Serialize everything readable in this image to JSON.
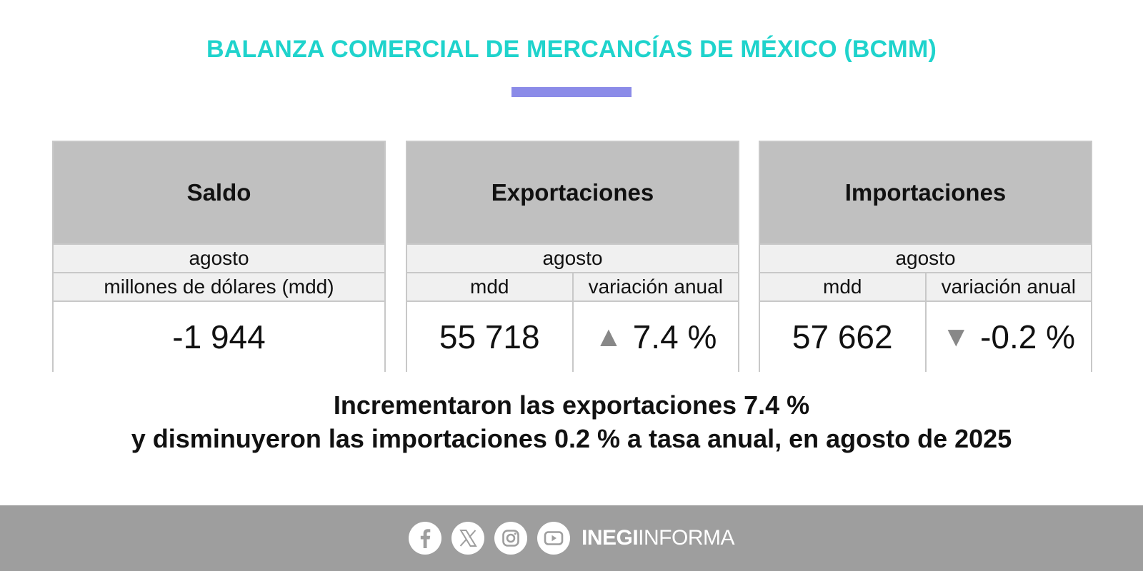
{
  "header": {
    "title": "BALANZA COMERCIAL DE MERCANCÍAS DE MÉXICO (BCMM)",
    "title_color": "#1fd3cc",
    "accent_bar_color": "#8b8be8"
  },
  "cards": {
    "saldo": {
      "title": "Saldo",
      "period": "agosto",
      "unit": "millones de dólares (mdd)",
      "value": "-1 944"
    },
    "exportaciones": {
      "title": "Exportaciones",
      "period": "agosto",
      "col_mdd": "mdd",
      "col_var": "variación anual",
      "value": "55 718",
      "variation": "7.4 %",
      "trend_icon": "triangle-up-icon"
    },
    "importaciones": {
      "title": "Importaciones",
      "period": "agosto",
      "col_mdd": "mdd",
      "col_var": "variación anual",
      "value": "57 662",
      "variation": "-0.2 %",
      "trend_icon": "triangle-down-icon"
    }
  },
  "summary": {
    "line1": "Incrementaron las exportaciones 7.4 %",
    "line2": "y disminuyeron las importaciones 0.2 % a tasa anual, en agosto de 2025"
  },
  "footer": {
    "icons": [
      "facebook-icon",
      "x-icon",
      "instagram-icon",
      "youtube-icon"
    ],
    "brand_bold": "INEGI",
    "brand_light": "INFORMA",
    "background_color": "#9e9e9e"
  }
}
